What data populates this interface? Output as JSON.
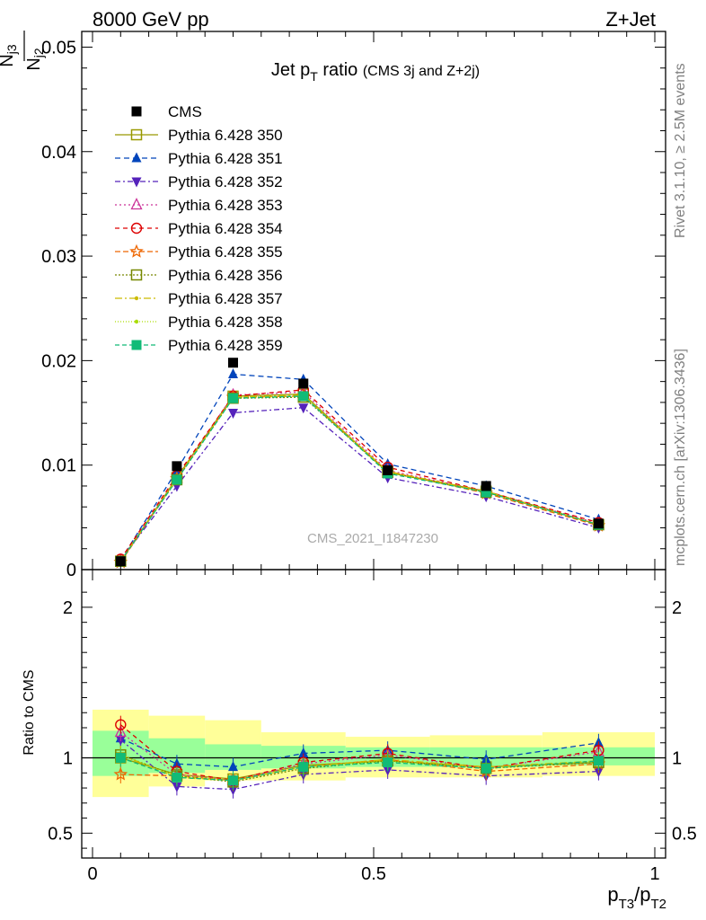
{
  "header": {
    "left": "8000 GeV pp",
    "right": "Z+Jet"
  },
  "side_labels": {
    "rivet": "Rivet 3.1.10, ≥ 2.5M events",
    "mcplots": "mcplots.cern.ch [arXiv:1306.3436]"
  },
  "watermark": "CMS_2021_I1847230",
  "chart_data": [
    {
      "type": "line",
      "panel": "main",
      "title_main": "Jet p",
      "title_sub": "T",
      "title_main2": " ratio",
      "title_small": "(CMS 3j and Z+2j)",
      "ylabel_num": "N",
      "ylabel_num_sub": "j3",
      "ylabel_den": "N",
      "ylabel_den_sub": "j2",
      "xlim": [
        0,
        1
      ],
      "ylim": [
        0,
        0.0515
      ],
      "yticks": [
        0,
        0.01,
        0.02,
        0.03,
        0.04,
        0.05
      ],
      "ytick_labels": [
        "0",
        "0.01",
        "0.02",
        "0.03",
        "0.04",
        "0.05"
      ],
      "legend_position": "top-left",
      "x": [
        0.05,
        0.15,
        0.25,
        0.375,
        0.525,
        0.7,
        0.9
      ],
      "data": {
        "name": "CMS",
        "values": [
          0.0008,
          0.0099,
          0.0198,
          0.0178,
          0.0095,
          0.008,
          0.0044
        ]
      },
      "series": [
        {
          "name": "Pythia 6.428 350",
          "color": "#999900",
          "dash": "",
          "marker": "square-open",
          "values": [
            0.0008,
            0.0088,
            0.0166,
            0.0168,
            0.0093,
            0.0075,
            0.0043
          ]
        },
        {
          "name": "Pythia 6.428 351",
          "color": "#0044bb",
          "dash": "6,4",
          "marker": "triangle-up",
          "values": [
            0.0009,
            0.0095,
            0.0187,
            0.0182,
            0.0101,
            0.008,
            0.0048
          ]
        },
        {
          "name": "Pythia 6.428 352",
          "color": "#5522bb",
          "dash": "6,3,2,3",
          "marker": "triangle-down",
          "values": [
            0.0009,
            0.008,
            0.015,
            0.0155,
            0.0088,
            0.007,
            0.004
          ]
        },
        {
          "name": "Pythia 6.428 353",
          "color": "#cc3399",
          "dash": "2,3",
          "marker": "triangle-open",
          "values": [
            0.0009,
            0.0087,
            0.0167,
            0.017,
            0.0095,
            0.0075,
            0.0044
          ]
        },
        {
          "name": "Pythia 6.428 354",
          "color": "#dd0000",
          "dash": "5,4",
          "marker": "circle-open",
          "values": [
            0.001,
            0.009,
            0.0166,
            0.0172,
            0.0098,
            0.0075,
            0.0045
          ]
        },
        {
          "name": "Pythia 6.428 355",
          "color": "#ee6600",
          "dash": "6,3",
          "marker": "star-open",
          "values": [
            0.0007,
            0.0087,
            0.0165,
            0.0166,
            0.0094,
            0.0073,
            0.0042
          ]
        },
        {
          "name": "Pythia 6.428 356",
          "color": "#778800",
          "dash": "2,2",
          "marker": "square-open",
          "values": [
            0.0008,
            0.0086,
            0.0164,
            0.0165,
            0.0093,
            0.0074,
            0.0043
          ]
        },
        {
          "name": "Pythia 6.428 357",
          "color": "#ccbb00",
          "dash": "8,3,2,3",
          "marker": "dot",
          "values": [
            0.0008,
            0.0087,
            0.0165,
            0.0167,
            0.0094,
            0.0075,
            0.0043
          ]
        },
        {
          "name": "Pythia 6.428 358",
          "color": "#aadd00",
          "dash": "1,2",
          "marker": "dot",
          "values": [
            0.0008,
            0.0087,
            0.0165,
            0.0166,
            0.0093,
            0.0074,
            0.0043
          ]
        },
        {
          "name": "Pythia 6.428 359",
          "color": "#11bb77",
          "dash": "5,3",
          "marker": "square",
          "values": [
            0.0008,
            0.0086,
            0.0164,
            0.0166,
            0.0092,
            0.0074,
            0.0043
          ]
        }
      ]
    },
    {
      "type": "line",
      "panel": "ratio",
      "ylabel": "Ratio to CMS",
      "xlabel_main": "p",
      "xlabel_sub1": "T3",
      "xlabel_mid": "/p",
      "xlabel_sub2": "T2",
      "xlim": [
        0,
        1
      ],
      "ylim": [
        0.335,
        2.25
      ],
      "yticks": [
        0.5,
        1,
        2
      ],
      "ytick_labels": [
        "0.5",
        "1",
        "2"
      ],
      "xticks": [
        0,
        0.5,
        1
      ],
      "xtick_labels": [
        "0",
        "0.5",
        "1"
      ],
      "bin_edges": [
        0,
        0.1,
        0.2,
        0.3,
        0.45,
        0.6,
        0.8,
        1.0
      ],
      "band_inner": [
        [
          0.88,
          1.18
        ],
        [
          0.9,
          1.13
        ],
        [
          0.92,
          1.09
        ],
        [
          0.93,
          1.08
        ],
        [
          0.94,
          1.07
        ],
        [
          0.94,
          1.07
        ],
        [
          0.95,
          1.07
        ]
      ],
      "band_outer": [
        [
          0.74,
          1.32
        ],
        [
          0.81,
          1.28
        ],
        [
          0.85,
          1.25
        ],
        [
          0.85,
          1.17
        ],
        [
          0.87,
          1.14
        ],
        [
          0.87,
          1.15
        ],
        [
          0.88,
          1.17
        ]
      ],
      "x": [
        0.05,
        0.15,
        0.25,
        0.375,
        0.525,
        0.7,
        0.9
      ],
      "series": [
        {
          "name": "Pythia 6.428 350",
          "values": [
            1.0,
            0.89,
            0.86,
            0.95,
            0.98,
            0.94,
            0.97
          ]
        },
        {
          "name": "Pythia 6.428 351",
          "values": [
            1.13,
            0.96,
            0.94,
            1.03,
            1.05,
            0.99,
            1.1
          ]
        },
        {
          "name": "Pythia 6.428 352",
          "values": [
            1.12,
            0.81,
            0.79,
            0.89,
            0.92,
            0.88,
            0.91
          ]
        },
        {
          "name": "Pythia 6.428 353",
          "values": [
            1.17,
            0.89,
            0.85,
            0.96,
            1.02,
            0.93,
            1.04
          ]
        },
        {
          "name": "Pythia 6.428 354",
          "values": [
            1.22,
            0.91,
            0.85,
            0.97,
            1.03,
            0.93,
            1.05
          ]
        },
        {
          "name": "Pythia 6.428 355",
          "values": [
            0.89,
            0.88,
            0.85,
            0.94,
            0.99,
            0.91,
            0.96
          ]
        },
        {
          "name": "Pythia 6.428 356",
          "values": [
            1.02,
            0.88,
            0.84,
            0.93,
            0.98,
            0.93,
            0.97
          ]
        },
        {
          "name": "Pythia 6.428 357",
          "values": [
            1.02,
            0.87,
            0.85,
            0.94,
            0.99,
            0.94,
            0.98
          ]
        },
        {
          "name": "Pythia 6.428 358",
          "values": [
            1.02,
            0.88,
            0.85,
            0.94,
            0.98,
            0.93,
            0.98
          ]
        },
        {
          "name": "Pythia 6.428 359",
          "values": [
            1.0,
            0.87,
            0.85,
            0.94,
            0.97,
            0.93,
            0.98
          ]
        }
      ]
    }
  ]
}
